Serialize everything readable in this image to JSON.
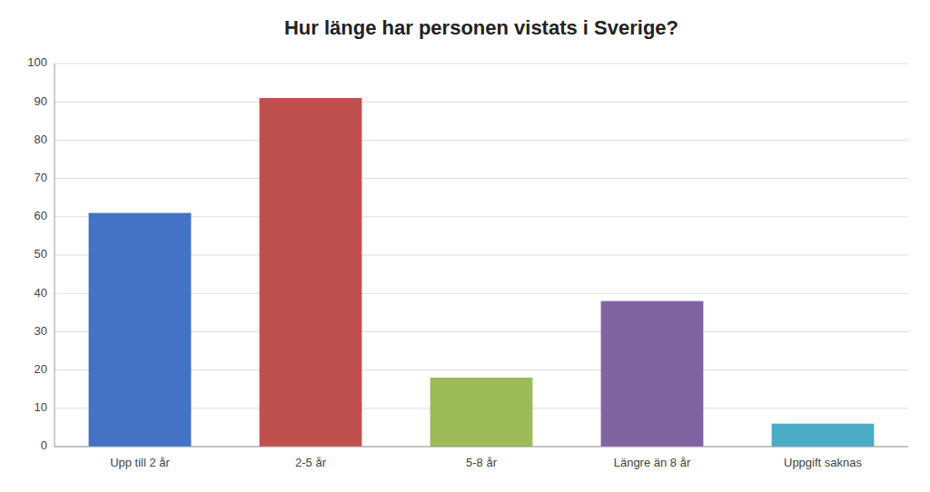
{
  "chart_data": {
    "type": "bar",
    "title": "Hur länge har personen vistats i Sverige?",
    "categories": [
      "Upp till 2 år",
      "2-5 år",
      "5-8 år",
      "Längre än 8 år",
      "Uppgift saknas"
    ],
    "values": [
      61,
      91,
      18,
      38,
      6
    ],
    "colors": [
      "#4472C4",
      "#C0504D",
      "#9BBB59",
      "#8064A2",
      "#4BACC6"
    ],
    "ylim": [
      0,
      100
    ],
    "yticks": [
      0,
      10,
      20,
      30,
      40,
      50,
      60,
      70,
      80,
      90,
      100
    ],
    "grid": true
  }
}
